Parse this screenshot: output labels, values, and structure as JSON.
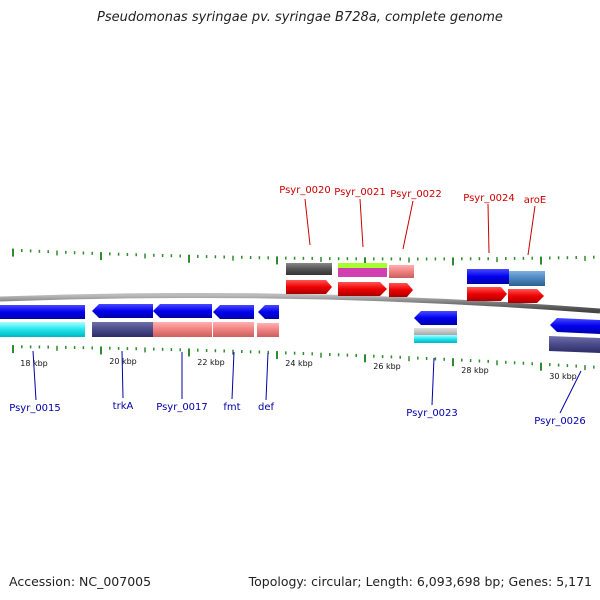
{
  "title": "Pseudomonas syringae pv. syringae B728a, complete genome",
  "footer": {
    "accession": "Accession: NC_007005",
    "summary": "Topology: circular; Length: 6,093,698 bp; Genes: 5,171"
  },
  "colors": {
    "forward_label": "#cc0000",
    "reverse_label": "#0000aa",
    "tick": "#2e8b2e",
    "backbone": "#888888"
  },
  "scale_labels": [
    "18 kbp",
    "20 kbp",
    "22 kbp",
    "24 kbp",
    "26 kbp",
    "28 kbp",
    "30 kbp"
  ],
  "forward_labels": [
    "Psyr_0020",
    "Psyr_0021",
    "Psyr_0022",
    "Psyr_0024",
    "aroE"
  ],
  "reverse_labels": [
    "Psyr_0015",
    "trkA",
    "Psyr_0017",
    "fmt",
    "def",
    "Psyr_0023",
    "Psyr_0026"
  ]
}
